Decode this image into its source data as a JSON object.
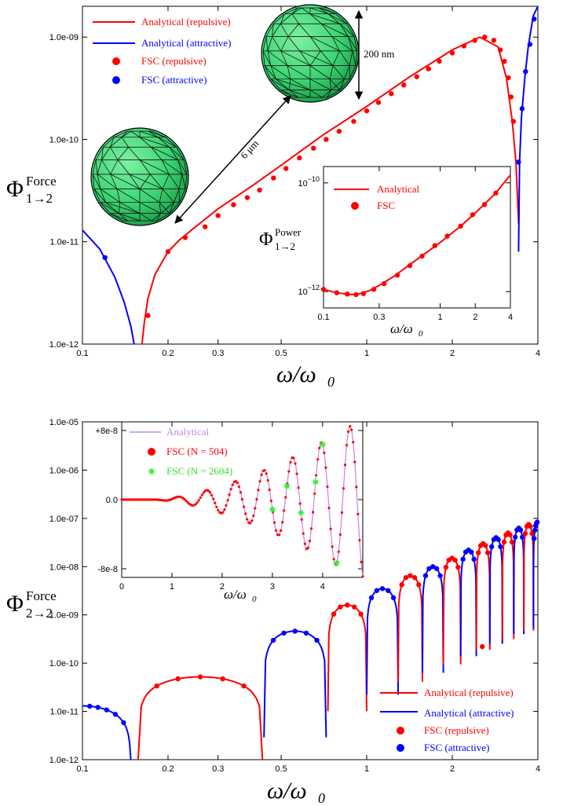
{
  "chart_data": [
    {
      "type": "line",
      "panel": "top",
      "ylabel": "Φ",
      "ylabel_sup": "Force",
      "ylabel_sub": "1→2",
      "xlabel": "ω/ω",
      "xlabel_sub": "0",
      "x_scale": "log",
      "y_scale": "log",
      "xlim": [
        0.1,
        4
      ],
      "ylim": [
        1e-12,
        2e-09
      ],
      "x_ticks": [
        {
          "v": 0.1,
          "label": "0.1"
        },
        {
          "v": 0.2,
          "label": "0.2"
        },
        {
          "v": 0.3,
          "label": "0.3"
        },
        {
          "v": 0.5,
          "label": "0.5"
        },
        {
          "v": 1,
          "label": "1"
        },
        {
          "v": 2,
          "label": "2"
        },
        {
          "v": 4,
          "label": "4"
        }
      ],
      "y_ticks": [
        {
          "v": 1e-12,
          "label": "1.0e-12"
        },
        {
          "v": 1e-11,
          "label": "1.0e-11"
        },
        {
          "v": 1e-10,
          "label": "1.0e-10"
        },
        {
          "v": 1e-09,
          "label": "1.0e-09"
        }
      ],
      "legend": {
        "placement": "top-left",
        "entries": [
          {
            "label": "Analytical (repulsive)",
            "color": "#ff0000",
            "kind": "line"
          },
          {
            "label": "Analytical (attractive)",
            "color": "#0000ff",
            "kind": "line"
          },
          {
            "label": "FSC (repulsive)",
            "color": "#ff0000",
            "kind": "dot"
          },
          {
            "label": "FSC (attractive)",
            "color": "#0000ff",
            "kind": "dot"
          }
        ]
      },
      "annotations": {
        "size_label": "200 nm",
        "distance_label": "6 μm"
      },
      "series": [
        {
          "name": "Analytical (attractive)",
          "color": "#0000ff",
          "kind": "line",
          "x": [
            0.1,
            0.115,
            0.13,
            0.14,
            0.148,
            0.152
          ],
          "y": [
            1.3e-11,
            8.5e-12,
            4.5e-12,
            2.6e-12,
            1.5e-12,
            1e-12
          ]
        },
        {
          "name": "FSC (attractive)",
          "color": "#0000ff",
          "kind": "dot",
          "x": [
            0.12
          ],
          "y": [
            7e-12
          ]
        },
        {
          "name": "Analytical (repulsive)",
          "color": "#ff0000",
          "kind": "line",
          "x": [
            0.162,
            0.165,
            0.17,
            0.18,
            0.2,
            0.22,
            0.25,
            0.3,
            0.4,
            0.5,
            0.7,
            1.0,
            1.4,
            2.0,
            2.5,
            2.9,
            3.1,
            3.25,
            3.35,
            3.42
          ],
          "y": [
            1e-12,
            1.6e-12,
            2.8e-12,
            4.8e-12,
            8e-12,
            1.05e-11,
            1.4e-11,
            2.1e-11,
            3.6e-11,
            5.6e-11,
            1.1e-10,
            2.1e-10,
            4e-10,
            7.5e-10,
            1e-09,
            8e-10,
            4e-10,
            1.5e-10,
            6e-11,
            1.5e-11
          ]
        },
        {
          "name": "FSC (repulsive)",
          "color": "#ff0000",
          "kind": "dot",
          "x": [
            0.17,
            0.2,
            0.23,
            0.27,
            0.3,
            0.34,
            0.38,
            0.42,
            0.47,
            0.52,
            0.58,
            0.65,
            0.72,
            0.8,
            0.9,
            1.0,
            1.1,
            1.22,
            1.35,
            1.5,
            1.65,
            1.8,
            2.0,
            2.2,
            2.4,
            2.6,
            2.8,
            2.95,
            3.05,
            3.15,
            3.22,
            3.28
          ],
          "y": [
            1.9e-12,
            8e-12,
            1.1e-11,
            1.4e-11,
            1.8e-11,
            2.3e-11,
            2.7e-11,
            3.2e-11,
            4.2e-11,
            5.2e-11,
            6.6e-11,
            8.2e-11,
            1e-10,
            1.2e-10,
            1.5e-10,
            1.9e-10,
            2.3e-10,
            2.8e-10,
            3.4e-10,
            4.1e-10,
            4.9e-10,
            5.8e-10,
            7e-10,
            8.2e-10,
            9.3e-10,
            1e-09,
            9.3e-10,
            7.5e-10,
            5.8e-10,
            4e-10,
            2.6e-10,
            1.5e-10
          ]
        },
        {
          "name": "Analytical (attractive)",
          "color": "#0000ff",
          "kind": "line",
          "x": [
            3.42,
            3.45,
            3.5,
            3.6,
            3.7,
            3.85,
            4.0
          ],
          "y": [
            8e-12,
            6e-11,
            1.6e-10,
            4e-10,
            8e-10,
            1.6e-09,
            2e-09
          ]
        },
        {
          "name": "FSC (attractive)",
          "color": "#0000ff",
          "kind": "dot",
          "x": [
            3.42,
            3.52,
            3.62,
            3.75,
            3.88
          ],
          "y": [
            6e-11,
            2e-10,
            4.6e-10,
            8.5e-10,
            1.5e-09
          ]
        }
      ]
    },
    {
      "type": "line",
      "panel": "top-inset",
      "ylabel": "Φ",
      "ylabel_sup": "Power",
      "ylabel_sub": "1→2",
      "xlabel": "ω/ω",
      "xlabel_sub": "0",
      "x_scale": "log",
      "y_scale": "log",
      "xlim": [
        0.1,
        4
      ],
      "ylim": [
        5e-13,
        2e-10
      ],
      "x_ticks": [
        {
          "v": 0.1,
          "label": "0.1"
        },
        {
          "v": 0.3,
          "label": "0.3"
        },
        {
          "v": 1,
          "label": "1"
        },
        {
          "v": 2,
          "label": "2"
        },
        {
          "v": 4,
          "label": "4"
        }
      ],
      "y_ticks": [
        {
          "v": 1e-12,
          "label": "10",
          "sup": "−12"
        },
        {
          "v": 1e-10,
          "label": "10",
          "sup": "−10"
        }
      ],
      "legend": {
        "placement": "top-right",
        "entries": [
          {
            "label": "Analytical",
            "color": "#ff0000",
            "kind": "line"
          },
          {
            "label": "FSC",
            "color": "#ff0000",
            "kind": "dot"
          }
        ]
      },
      "series": [
        {
          "name": "Analytical",
          "color": "#ff0000",
          "kind": "line",
          "x": [
            0.1,
            0.13,
            0.17,
            0.2,
            0.25,
            0.3,
            0.4,
            0.6,
            1.0,
            1.5,
            2.0,
            3.0,
            4.0
          ],
          "y": [
            1.1e-12,
            9.5e-13,
            8.8e-13,
            9e-13,
            1.05e-12,
            1.3e-12,
            1.9e-12,
            3.6e-12,
            8e-12,
            1.6e-11,
            2.8e-11,
            6.5e-11,
            1.4e-10
          ]
        },
        {
          "name": "FSC",
          "color": "#ff0000",
          "kind": "dot",
          "x": [
            0.1,
            0.13,
            0.16,
            0.19,
            0.22,
            0.27,
            0.33,
            0.43,
            0.55,
            0.7,
            0.9,
            1.15,
            1.5,
            1.9,
            2.4,
            3.0
          ],
          "y": [
            1.1e-12,
            9.5e-13,
            9e-13,
            8.8e-13,
            9.2e-13,
            1.1e-12,
            1.4e-12,
            2e-12,
            3e-12,
            4.5e-12,
            7e-12,
            1.05e-11,
            1.6e-11,
            2.6e-11,
            4e-11,
            6.5e-11
          ]
        }
      ]
    },
    {
      "type": "line",
      "panel": "bottom",
      "ylabel": "Φ",
      "ylabel_sup": "Force",
      "ylabel_sub": "2→2",
      "xlabel": "ω/ω",
      "xlabel_sub": "0",
      "x_scale": "log",
      "y_scale": "log",
      "xlim": [
        0.1,
        4
      ],
      "ylim": [
        1e-12,
        1e-05
      ],
      "x_ticks": [
        {
          "v": 0.1,
          "label": "0.1"
        },
        {
          "v": 0.2,
          "label": "0.2"
        },
        {
          "v": 0.3,
          "label": "0.3"
        },
        {
          "v": 0.5,
          "label": "0.5"
        },
        {
          "v": 1,
          "label": "1"
        },
        {
          "v": 2,
          "label": "2"
        },
        {
          "v": 4,
          "label": "4"
        }
      ],
      "y_ticks": [
        {
          "v": 1e-12,
          "label": "1.0e-12"
        },
        {
          "v": 1e-11,
          "label": "1.0e-11"
        },
        {
          "v": 1e-10,
          "label": "1.0e-10"
        },
        {
          "v": 1e-09,
          "label": "1.0e-09"
        },
        {
          "v": 1e-08,
          "label": "1.0e-08"
        },
        {
          "v": 1e-07,
          "label": "1.0e-07"
        },
        {
          "v": 1e-06,
          "label": "1.0e-06"
        },
        {
          "v": 1e-05,
          "label": "1.0e-05"
        }
      ],
      "legend": {
        "placement": "bottom-right",
        "entries": [
          {
            "label": "Analytical (repulsive)",
            "color": "#ff0000",
            "kind": "line"
          },
          {
            "label": "Analytical (attractive)",
            "color": "#0000ff",
            "kind": "line"
          },
          {
            "label": "FSC (repulsive)",
            "color": "#ff0000",
            "kind": "dot"
          },
          {
            "label": "FSC (attractive)",
            "color": "#0000ff",
            "kind": "dot"
          }
        ]
      },
      "lobes": [
        {
          "from": 0.1,
          "to": 0.148,
          "peak": 1.3e-11,
          "sign": "attractive",
          "left_open": true
        },
        {
          "from": 0.157,
          "to": 0.43,
          "peak": 5.2e-11,
          "sign": "repulsive"
        },
        {
          "from": 0.435,
          "to": 0.72,
          "peak": 4.6e-10,
          "sign": "attractive"
        },
        {
          "from": 0.73,
          "to": 1.0,
          "peak": 1.6e-09,
          "sign": "repulsive"
        },
        {
          "from": 1.0,
          "to": 1.29,
          "peak": 3.5e-09,
          "sign": "attractive"
        },
        {
          "from": 1.29,
          "to": 1.57,
          "peak": 6.5e-09,
          "sign": "repulsive"
        },
        {
          "from": 1.57,
          "to": 1.86,
          "peak": 1e-08,
          "sign": "attractive"
        },
        {
          "from": 1.86,
          "to": 2.14,
          "peak": 1.5e-08,
          "sign": "repulsive"
        },
        {
          "from": 2.14,
          "to": 2.43,
          "peak": 2.2e-08,
          "sign": "attractive"
        },
        {
          "from": 2.43,
          "to": 2.71,
          "peak": 3e-08,
          "sign": "repulsive"
        },
        {
          "from": 2.71,
          "to": 3.0,
          "peak": 4e-08,
          "sign": "attractive"
        },
        {
          "from": 3.0,
          "to": 3.29,
          "peak": 5e-08,
          "sign": "repulsive"
        },
        {
          "from": 3.29,
          "to": 3.57,
          "peak": 6.3e-08,
          "sign": "attractive"
        },
        {
          "from": 3.57,
          "to": 3.86,
          "peak": 7.5e-08,
          "sign": "repulsive"
        },
        {
          "from": 3.86,
          "to": 4.0,
          "peak": 8.5e-08,
          "sign": "attractive",
          "right_open": true
        }
      ],
      "outlier_points": [
        {
          "x": 2.55,
          "y": 2.2e-10,
          "color": "#ff0000"
        }
      ]
    },
    {
      "type": "line",
      "panel": "bottom-inset",
      "xlabel": "ω/ω",
      "xlabel_sub": "0",
      "x_scale": "linear",
      "y_scale": "linear",
      "xlim": [
        0,
        4.8
      ],
      "ylim": [
        -9e-08,
        9e-08
      ],
      "x_ticks": [
        {
          "v": 0,
          "label": "0"
        },
        {
          "v": 1,
          "label": "1"
        },
        {
          "v": 2,
          "label": "2"
        },
        {
          "v": 3,
          "label": "3"
        },
        {
          "v": 4,
          "label": "4"
        }
      ],
      "y_ticks": [
        {
          "v": 8e-08,
          "label": "+8e-8"
        },
        {
          "v": 0,
          "label": "0.0"
        },
        {
          "v": -8e-08,
          "label": "-8e-8"
        }
      ],
      "legend": {
        "placement": "top-left",
        "entries": [
          {
            "label": "Analytical",
            "color": "#c58be8",
            "kind": "line"
          },
          {
            "label": "FSC (N = 504)",
            "color": "#ff0000",
            "kind": "dot"
          },
          {
            "label": "FSC (N = 2604)",
            "color": "#33ee33",
            "kind": "star"
          }
        ]
      },
      "model": {
        "frequency": 1.75,
        "onset": 0.6,
        "amp_scale": 8e-08,
        "amp_ref": 4.4,
        "phase": 0.3
      },
      "green_marks_x": [
        3.0,
        3.29,
        3.57,
        3.86,
        4.0,
        4.28
      ]
    }
  ]
}
